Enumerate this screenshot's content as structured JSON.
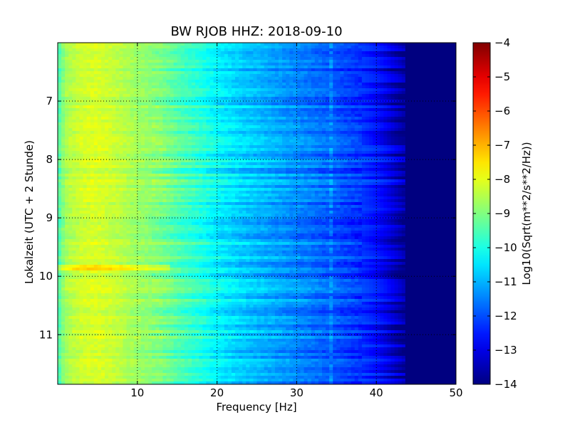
{
  "chart_data": {
    "type": "heatmap",
    "title": "BW RJOB HHZ: 2018-09-10",
    "xlabel": "Frequency [Hz]",
    "ylabel": "Lokalzeit (UTC + 2 Stunde)",
    "xlim": [
      0,
      50
    ],
    "ylim": [
      6.0,
      11.85
    ],
    "y_inverted": true,
    "x_ticks": [
      10,
      20,
      30,
      40,
      50
    ],
    "x_tick_labels": [
      "10",
      "20",
      "30",
      "40",
      "50"
    ],
    "y_ticks": [
      7,
      8,
      9,
      10,
      11
    ],
    "y_tick_labels": [
      "7",
      "8",
      "9",
      "10",
      "11"
    ],
    "grid": true,
    "colormap": "jet",
    "colorbar": {
      "label": "Log10(Sqrt(m**2/s**2/Hz))",
      "range": [
        -14,
        -4
      ],
      "ticks": [
        -4,
        -5,
        -6,
        -7,
        -8,
        -9,
        -10,
        -11,
        -12,
        -13,
        -14
      ],
      "tick_labels": [
        "−4",
        "−5",
        "−6",
        "−7",
        "−8",
        "−9",
        "−10",
        "−11",
        "−12",
        "−13",
        "−14"
      ]
    },
    "spectral_profile": {
      "frequency_hz": [
        0,
        1,
        3,
        5,
        8,
        10,
        13,
        15,
        18,
        20,
        23,
        25,
        28,
        30,
        33,
        35,
        38,
        40,
        41,
        42,
        43,
        44,
        50
      ],
      "log10_amplitude": [
        -9.6,
        -8.6,
        -8.2,
        -8.1,
        -8.4,
        -8.7,
        -9.0,
        -9.4,
        -9.9,
        -10.3,
        -10.7,
        -10.9,
        -11.2,
        -11.4,
        -11.7,
        -11.9,
        -12.3,
        -12.7,
        -13.0,
        -13.4,
        -13.8,
        -14.0,
        -14.0
      ]
    },
    "features": [
      {
        "type": "line",
        "frequency_hz": 34.3,
        "note": "narrow spectral line across the day"
      },
      {
        "type": "band",
        "time": 9.82,
        "freq_range_hz": [
          0,
          14
        ],
        "delta": 0.8
      }
    ]
  }
}
